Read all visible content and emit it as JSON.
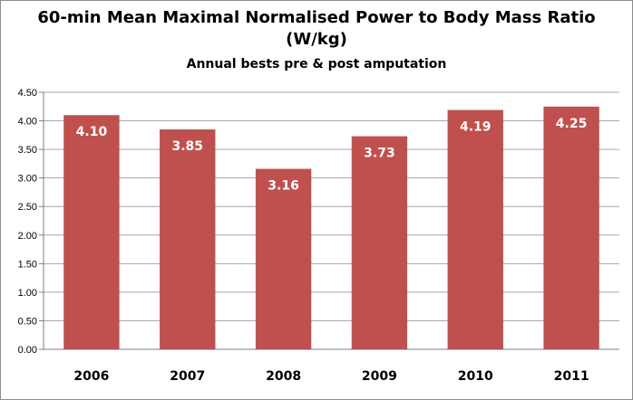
{
  "chart_data": {
    "type": "bar",
    "title": "60-min Mean Maximal Normalised Power to Body Mass Ratio",
    "title_line2": "(W/kg)",
    "subtitle": "Annual bests pre & post amputation",
    "categories": [
      "2006",
      "2007",
      "2008",
      "2009",
      "2010",
      "2011"
    ],
    "values": [
      4.1,
      3.85,
      3.16,
      3.73,
      4.19,
      4.25
    ],
    "data_labels": [
      "4.10",
      "3.85",
      "3.16",
      "3.73",
      "4.19",
      "4.25"
    ],
    "ylim": [
      0,
      4.5
    ],
    "yticks": [
      "0.00",
      "0.50",
      "1.00",
      "1.50",
      "2.00",
      "2.50",
      "3.00",
      "3.50",
      "4.00",
      "4.50"
    ],
    "grid": true,
    "legend": "none",
    "bar_color": "#c0504d",
    "grid_color": "#a6a6a6"
  }
}
